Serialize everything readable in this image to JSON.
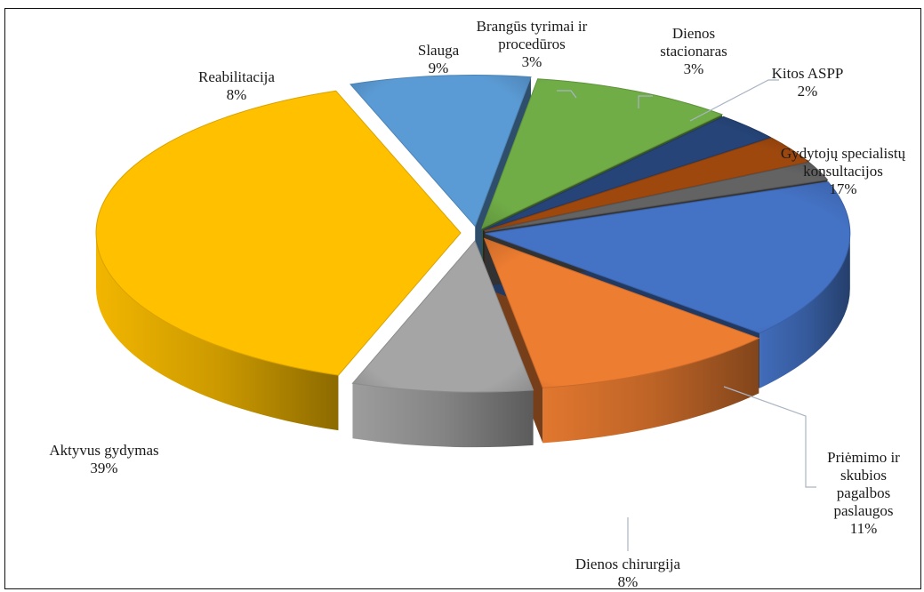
{
  "chart_data": {
    "type": "pie",
    "title": "",
    "exploded": true,
    "three_d": true,
    "slices": [
      {
        "label": "Gydytojų specialistų konsultacijos",
        "value": 17,
        "value_label": "17%",
        "color": "#4472C4"
      },
      {
        "label": "Priėmimo ir skubios pagalbos paslaugos",
        "value": 11,
        "value_label": "11%",
        "color": "#ED7D31"
      },
      {
        "label": "Dienos chirurgija",
        "value": 8,
        "value_label": "8%",
        "color": "#A5A5A5"
      },
      {
        "label": "Aktyvus gydymas",
        "value": 39,
        "value_label": "39%",
        "color": "#FFC000"
      },
      {
        "label": "Reabilitacija",
        "value": 8,
        "value_label": "8%",
        "color": "#5B9BD5"
      },
      {
        "label": "Slauga",
        "value": 9,
        "value_label": "9%",
        "color": "#70AD47"
      },
      {
        "label": "Brangūs tyrimai ir procedūros",
        "value": 3,
        "value_label": "3%",
        "color": "#264478"
      },
      {
        "label": "Dienos stacionaras",
        "value": 3,
        "value_label": "3%",
        "color": "#9E480E"
      },
      {
        "label": "Kitos ASPP",
        "value": 2,
        "value_label": "2%",
        "color": "#636363"
      }
    ]
  }
}
